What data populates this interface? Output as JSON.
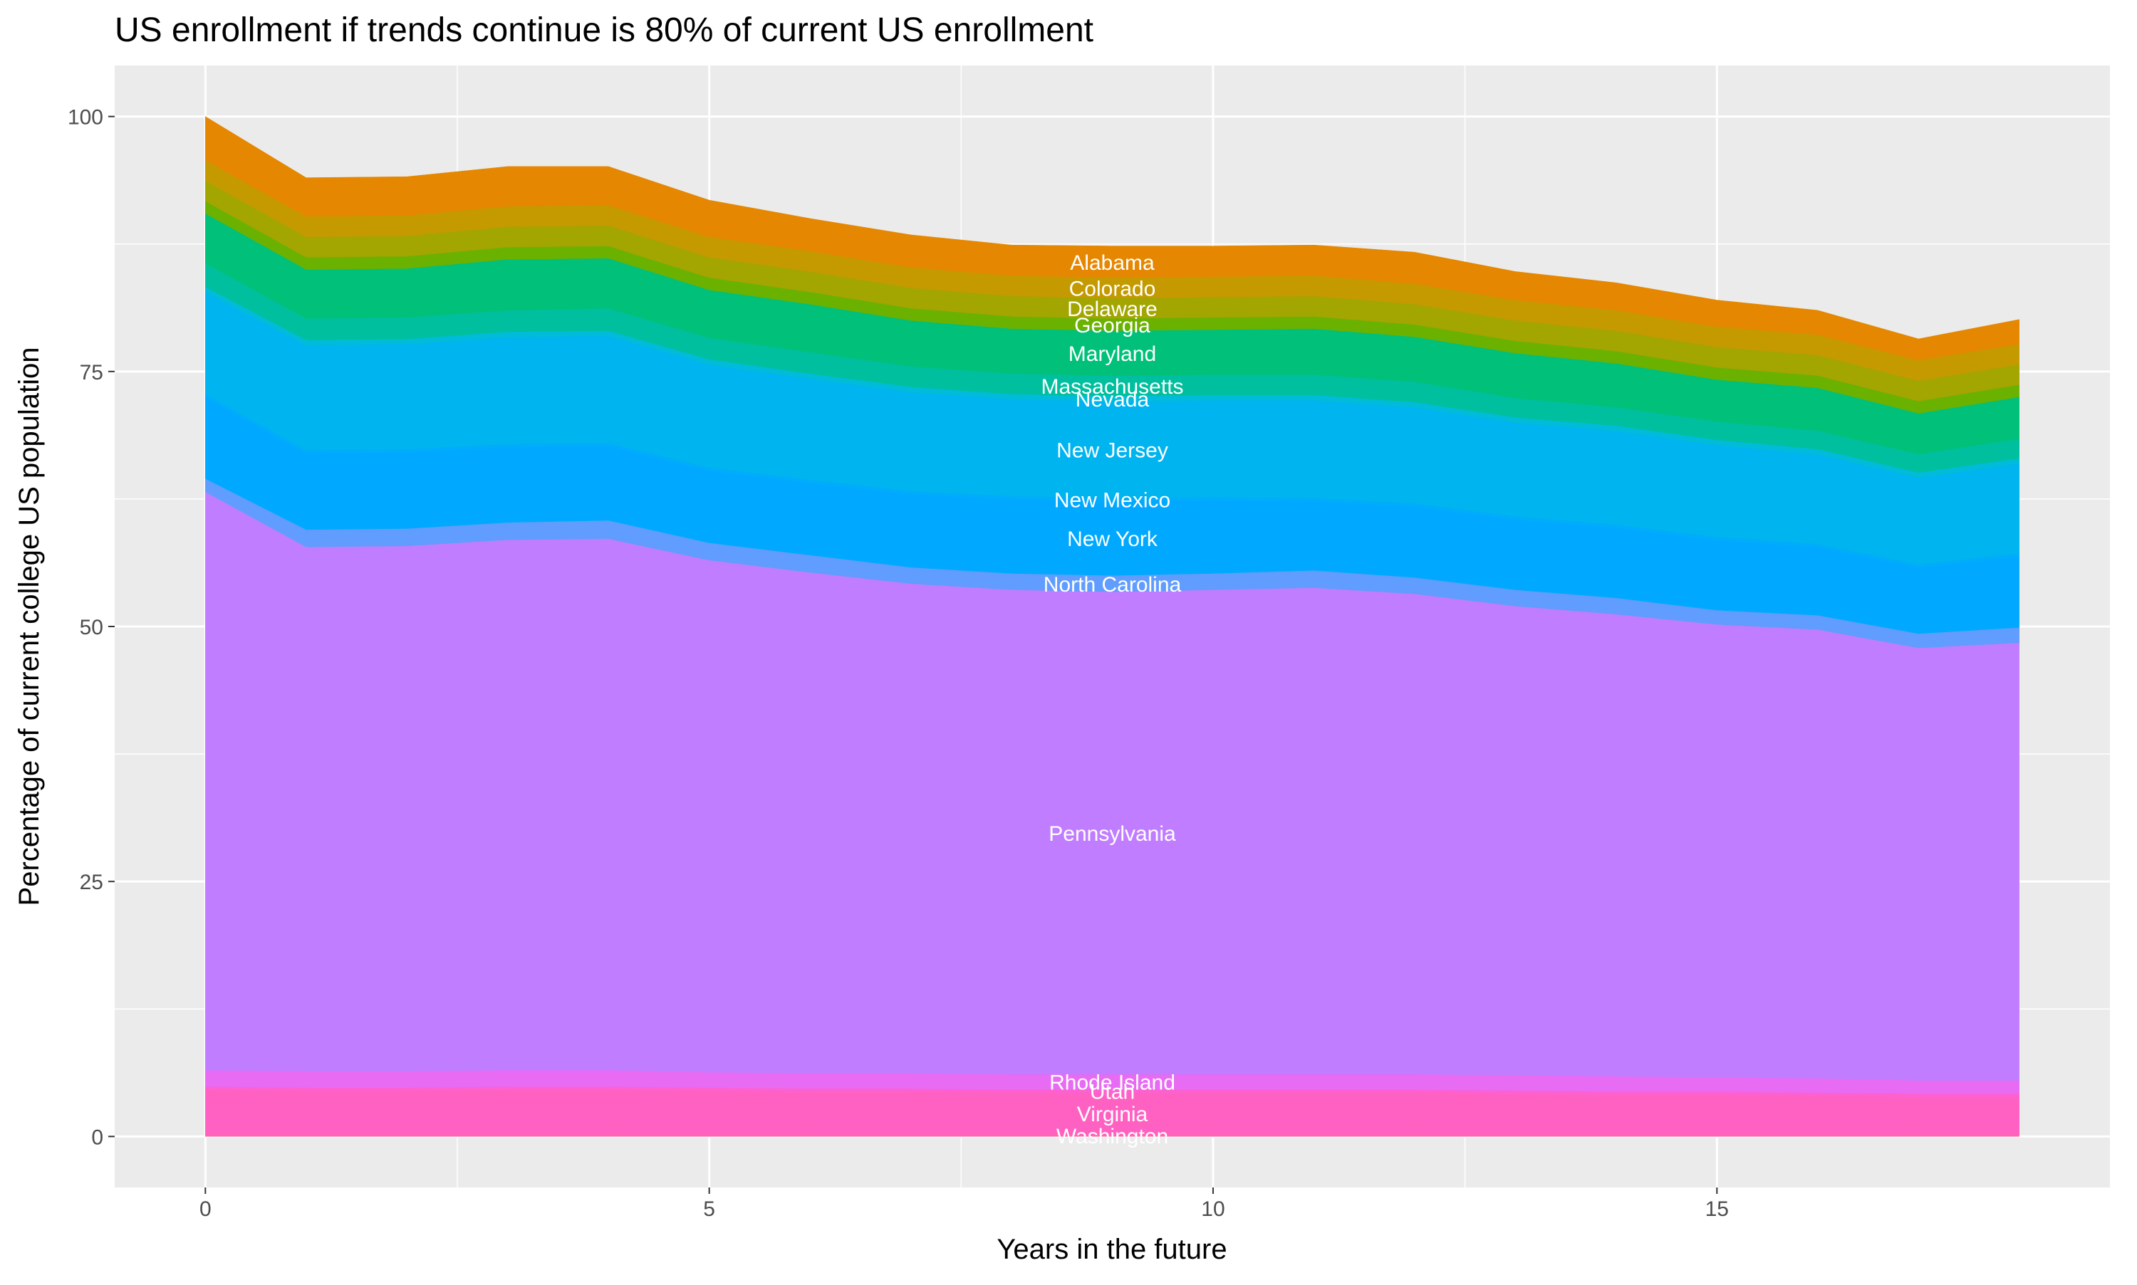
{
  "chart_data": {
    "type": "stacked_area",
    "title": "US enrollment if trends continue is 80% of current US enrollment",
    "x_label": "Years in the future",
    "y_label": "Percentage of current college US population",
    "x": [
      0,
      1,
      2,
      3,
      4,
      5,
      6,
      7,
      8,
      9,
      10,
      11,
      12,
      13,
      14,
      15,
      16,
      17,
      18
    ],
    "xlim": [
      -0.9,
      18.9
    ],
    "xticks": [
      0,
      5,
      10,
      15
    ],
    "ylim": [
      -5,
      105
    ],
    "yticks": [
      0,
      25,
      50,
      75,
      100
    ],
    "grid": true,
    "series": [
      {
        "name": "Washington",
        "color": "#FF67A4",
        "values": [
          0.2,
          0.2,
          0.2,
          0.2,
          0.2,
          0.2,
          0.2,
          0.2,
          0.2,
          0.2,
          0.2,
          0.2,
          0.2,
          0.2,
          0.2,
          0.2,
          0.2,
          0.2,
          0.2
        ]
      },
      {
        "name": "Virginia",
        "color": "#FF61C3",
        "values": [
          4.4,
          4.3,
          4.3,
          4.4,
          4.4,
          4.3,
          4.2,
          4.2,
          4.1,
          4.1,
          4.1,
          4.1,
          4.1,
          4.0,
          3.9,
          3.9,
          3.8,
          3.7,
          3.7
        ]
      },
      {
        "name": "Utah",
        "color": "#FD61D1",
        "values": [
          0.3,
          0.3,
          0.3,
          0.3,
          0.3,
          0.3,
          0.3,
          0.3,
          0.3,
          0.3,
          0.3,
          0.3,
          0.3,
          0.3,
          0.3,
          0.3,
          0.3,
          0.3,
          0.3
        ]
      },
      {
        "name": "Rhode Island",
        "color": "#E76BF3",
        "values": [
          1.6,
          1.6,
          1.6,
          1.6,
          1.6,
          1.5,
          1.5,
          1.5,
          1.5,
          1.5,
          1.5,
          1.5,
          1.5,
          1.5,
          1.5,
          1.4,
          1.4,
          1.3,
          1.3
        ]
      },
      {
        "name": "Pennsylvania",
        "color": "#C17DFF",
        "values": [
          56.7,
          51.4,
          51.5,
          52.0,
          52.1,
          50.2,
          49.1,
          48.0,
          47.5,
          47.3,
          47.5,
          47.7,
          47.1,
          46.0,
          45.3,
          44.4,
          44.0,
          42.4,
          42.9
        ]
      },
      {
        "name": "North Carolina",
        "color": "#619CFF",
        "values": [
          1.3,
          1.7,
          1.7,
          1.7,
          1.8,
          1.7,
          1.7,
          1.6,
          1.6,
          1.6,
          1.6,
          1.7,
          1.6,
          1.6,
          1.6,
          1.4,
          1.4,
          1.4,
          1.5
        ]
      },
      {
        "name": "New York",
        "color": "#00A9FF",
        "values": [
          8.0,
          7.5,
          7.5,
          7.4,
          7.3,
          7.1,
          7.1,
          7.2,
          7.3,
          7.3,
          7.2,
          6.8,
          7.0,
          6.9,
          6.9,
          6.9,
          6.7,
          6.5,
          7.0
        ]
      },
      {
        "name": "New Mexico",
        "color": "#00ADFA",
        "values": [
          0.3,
          0.3,
          0.3,
          0.3,
          0.3,
          0.3,
          0.3,
          0.3,
          0.3,
          0.3,
          0.3,
          0.3,
          0.3,
          0.3,
          0.3,
          0.3,
          0.3,
          0.3,
          0.3
        ]
      },
      {
        "name": "New Jersey",
        "color": "#00B4EF",
        "values": [
          10.0,
          10.3,
          10.3,
          10.5,
          10.5,
          10.1,
          9.9,
          9.7,
          9.5,
          9.5,
          9.5,
          9.6,
          9.4,
          9.2,
          9.2,
          9.0,
          8.8,
          8.5,
          8.8
        ]
      },
      {
        "name": "Nevada",
        "color": "#00BCD8",
        "values": [
          0.5,
          0.5,
          0.5,
          0.5,
          0.5,
          0.5,
          0.5,
          0.5,
          0.5,
          0.5,
          0.5,
          0.5,
          0.5,
          0.5,
          0.5,
          0.5,
          0.5,
          0.5,
          0.5
        ]
      },
      {
        "name": "Massachusetts",
        "color": "#00BF9E",
        "values": [
          2.3,
          2.1,
          2.1,
          2.1,
          2.2,
          2.1,
          2.1,
          2.0,
          2.0,
          2.0,
          2.0,
          2.0,
          2.0,
          1.9,
          1.8,
          1.8,
          1.8,
          1.8,
          1.9
        ]
      },
      {
        "name": "Maryland",
        "color": "#00C07A",
        "values": [
          4.9,
          4.8,
          4.8,
          5.0,
          4.9,
          4.7,
          4.7,
          4.5,
          4.4,
          4.4,
          4.4,
          4.5,
          4.4,
          4.4,
          4.3,
          4.1,
          4.2,
          4.0,
          4.1
        ]
      },
      {
        "name": "Georgia",
        "color": "#6BB100",
        "values": [
          1.2,
          1.2,
          1.2,
          1.2,
          1.2,
          1.2,
          1.2,
          1.2,
          1.2,
          1.2,
          1.2,
          1.2,
          1.2,
          1.2,
          1.2,
          1.2,
          1.2,
          1.2,
          1.2
        ]
      },
      {
        "name": "Delaware",
        "color": "#A3A500",
        "values": [
          2.0,
          2.0,
          2.0,
          2.0,
          2.0,
          2.0,
          2.0,
          2.0,
          2.0,
          2.0,
          2.0,
          2.0,
          2.0,
          2.0,
          2.0,
          2.0,
          2.0,
          2.0,
          2.0
        ]
      },
      {
        "name": "Colorado",
        "color": "#C49A00",
        "values": [
          2.0,
          2.0,
          2.0,
          2.0,
          2.0,
          2.0,
          2.0,
          2.0,
          2.0,
          2.0,
          2.0,
          2.0,
          2.0,
          2.0,
          2.0,
          2.0,
          2.0,
          2.0,
          2.0
        ]
      },
      {
        "name": "Alabama",
        "color": "#E58700",
        "values": [
          4.3,
          3.8,
          3.8,
          3.9,
          3.8,
          3.6,
          3.2,
          3.2,
          3.0,
          3.1,
          3.0,
          3.0,
          3.1,
          2.8,
          2.7,
          2.6,
          2.4,
          2.1,
          2.4
        ]
      }
    ]
  }
}
